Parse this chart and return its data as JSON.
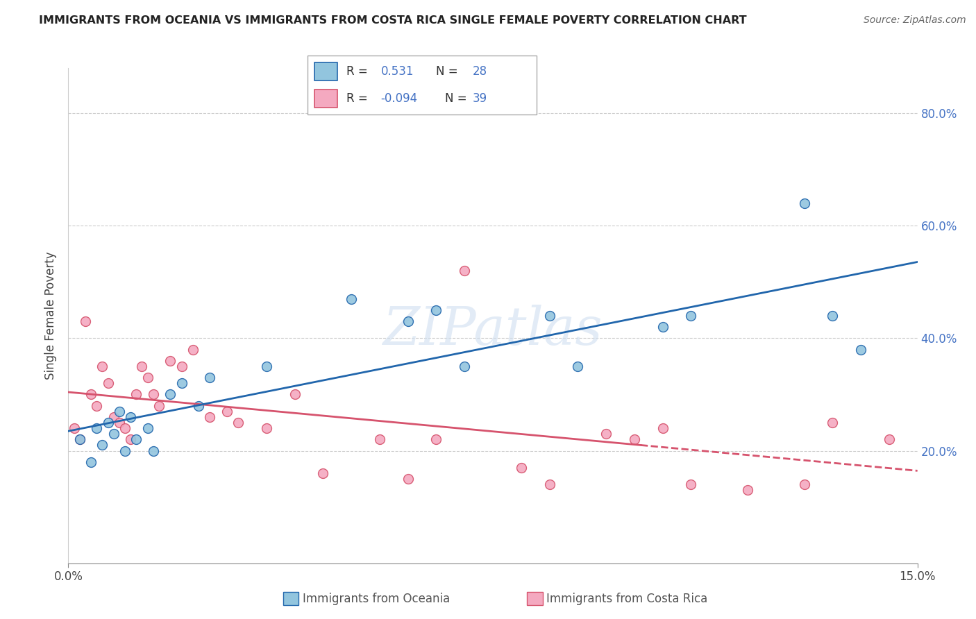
{
  "title": "IMMIGRANTS FROM OCEANIA VS IMMIGRANTS FROM COSTA RICA SINGLE FEMALE POVERTY CORRELATION CHART",
  "source": "Source: ZipAtlas.com",
  "ylabel": "Single Female Poverty",
  "legend_label1": "Immigrants from Oceania",
  "legend_label2": "Immigrants from Costa Rica",
  "R1": 0.531,
  "N1": 28,
  "R2": -0.094,
  "N2": 39,
  "xlim": [
    0.0,
    15.0
  ],
  "ylim": [
    0.0,
    88.0
  ],
  "y_ticks": [
    20.0,
    40.0,
    60.0,
    80.0
  ],
  "color_blue": "#92c5de",
  "color_pink": "#f4a9c0",
  "color_blue_line": "#2166ac",
  "color_pink_line": "#d6536d",
  "watermark": "ZIPatlas",
  "blue_x": [
    0.2,
    0.4,
    0.5,
    0.6,
    0.7,
    0.8,
    0.9,
    1.0,
    1.1,
    1.2,
    1.4,
    1.5,
    1.8,
    2.0,
    2.3,
    2.5,
    3.5,
    5.0,
    6.0,
    6.5,
    7.0,
    8.5,
    9.0,
    10.5,
    11.0,
    13.0,
    13.5,
    14.0
  ],
  "blue_y": [
    22,
    18,
    24,
    21,
    25,
    23,
    27,
    20,
    26,
    22,
    24,
    20,
    30,
    32,
    28,
    33,
    35,
    47,
    43,
    45,
    35,
    44,
    35,
    42,
    44,
    64,
    44,
    38
  ],
  "pink_x": [
    0.1,
    0.2,
    0.3,
    0.4,
    0.5,
    0.6,
    0.7,
    0.8,
    0.9,
    1.0,
    1.1,
    1.2,
    1.3,
    1.4,
    1.5,
    1.6,
    1.8,
    2.0,
    2.2,
    2.5,
    2.8,
    3.0,
    3.5,
    4.0,
    4.5,
    5.5,
    6.0,
    6.5,
    7.0,
    8.0,
    8.5,
    9.5,
    10.0,
    10.5,
    11.0,
    12.0,
    13.0,
    13.5,
    14.5
  ],
  "pink_y": [
    24,
    22,
    43,
    30,
    28,
    35,
    32,
    26,
    25,
    24,
    22,
    30,
    35,
    33,
    30,
    28,
    36,
    35,
    38,
    26,
    27,
    25,
    24,
    30,
    16,
    22,
    15,
    22,
    52,
    17,
    14,
    23,
    22,
    24,
    14,
    13,
    14,
    25,
    22
  ]
}
